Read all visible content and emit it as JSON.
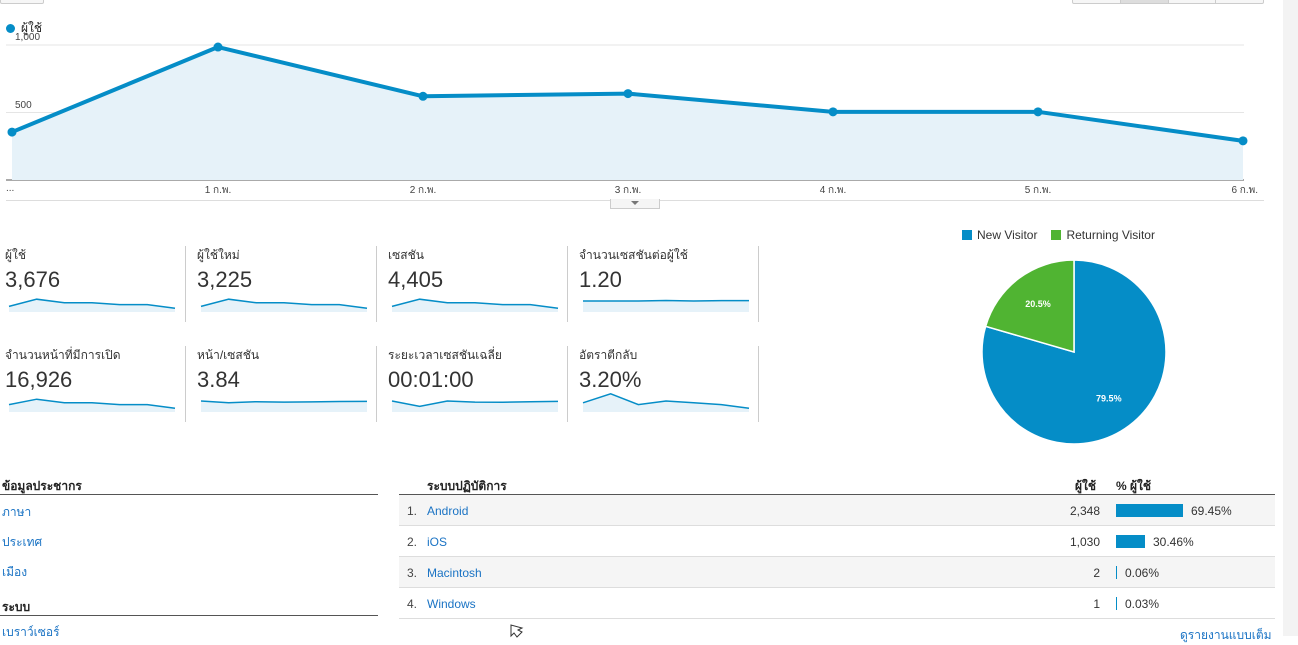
{
  "legend_top": {
    "label": "ผู้ใช้",
    "color": "#058dc7"
  },
  "chart_data": {
    "type": "line",
    "series": [
      {
        "name": "ผู้ใช้",
        "values": [
          355,
          985,
          620,
          640,
          505,
          505,
          290
        ]
      }
    ],
    "x_labels": [
      "...",
      "1 ก.พ.",
      "2 ก.พ.",
      "3 ก.พ.",
      "4 ก.พ.",
      "5 ก.พ.",
      "6 ก.พ."
    ],
    "y_ticks": [
      "500",
      "1,000"
    ],
    "ylim": [
      0,
      1000
    ],
    "grid": true
  },
  "metrics": [
    {
      "label": "ผู้ใช้",
      "value": "3,676",
      "spark": [
        2,
        6,
        4,
        4,
        3,
        3,
        1
      ]
    },
    {
      "label": "ผู้ใช้ใหม่",
      "value": "3,225",
      "spark": [
        2,
        6,
        4,
        4,
        3,
        3,
        1
      ]
    },
    {
      "label": "เซสชัน",
      "value": "4,405",
      "spark": [
        2,
        6,
        4,
        4,
        3,
        3,
        1
      ]
    },
    {
      "label": "จำนวนเซสชันต่อผู้ใช้",
      "value": "1.20",
      "spark": [
        5,
        5,
        5,
        5.3,
        5,
        5.2,
        5.2
      ]
    },
    {
      "label": "จำนวนหน้าที่มีการเปิด",
      "value": "16,926",
      "spark": [
        3,
        6,
        4,
        4,
        3,
        3,
        1
      ]
    },
    {
      "label": "หน้า/เซสชัน",
      "value": "3.84",
      "spark": [
        5,
        4,
        4.6,
        4.4,
        4.5,
        4.7,
        4.8
      ]
    },
    {
      "label": "ระยะเวลาเซสชันเฉลี่ย",
      "value": "00:01:00",
      "spark": [
        5,
        2,
        5,
        4.4,
        4.3,
        4.6,
        4.8
      ]
    },
    {
      "label": "อัตราตีกลับ",
      "value": "3.20%",
      "spark": [
        4,
        9,
        3,
        5,
        4,
        3,
        1
      ]
    }
  ],
  "pie": {
    "legend": [
      {
        "label": "New Visitor",
        "color": "#058dc7"
      },
      {
        "label": "Returning Visitor",
        "color": "#50b432"
      }
    ],
    "slices": [
      {
        "label": "79.5%",
        "value": 79.5,
        "color": "#058dc7"
      },
      {
        "label": "20.5%",
        "value": 20.5,
        "color": "#50b432"
      }
    ]
  },
  "demographics": {
    "title": "ข้อมูลประชากร",
    "links": [
      "ภาษา",
      "ประเทศ",
      "เมือง"
    ],
    "system_title": "ระบบ",
    "system_links": [
      "เบราว์เซอร์"
    ]
  },
  "os_table": {
    "title": "ระบบปฏิบัติการ",
    "col_users": "ผู้ใช้",
    "col_pct": "% ผู้ใช้",
    "rows": [
      {
        "rank": "1.",
        "name": "Android",
        "users": "2,348",
        "pct": "69.45%",
        "frac": 0.6945
      },
      {
        "rank": "2.",
        "name": "iOS",
        "users": "1,030",
        "pct": "30.46%",
        "frac": 0.3046
      },
      {
        "rank": "3.",
        "name": "Macintosh",
        "users": "2",
        "pct": "0.06%",
        "frac": 0.0006
      },
      {
        "rank": "4.",
        "name": "Windows",
        "users": "1",
        "pct": "0.03%",
        "frac": 0.0003
      }
    ],
    "full_report": "ดูรายงานแบบเต็ม"
  }
}
